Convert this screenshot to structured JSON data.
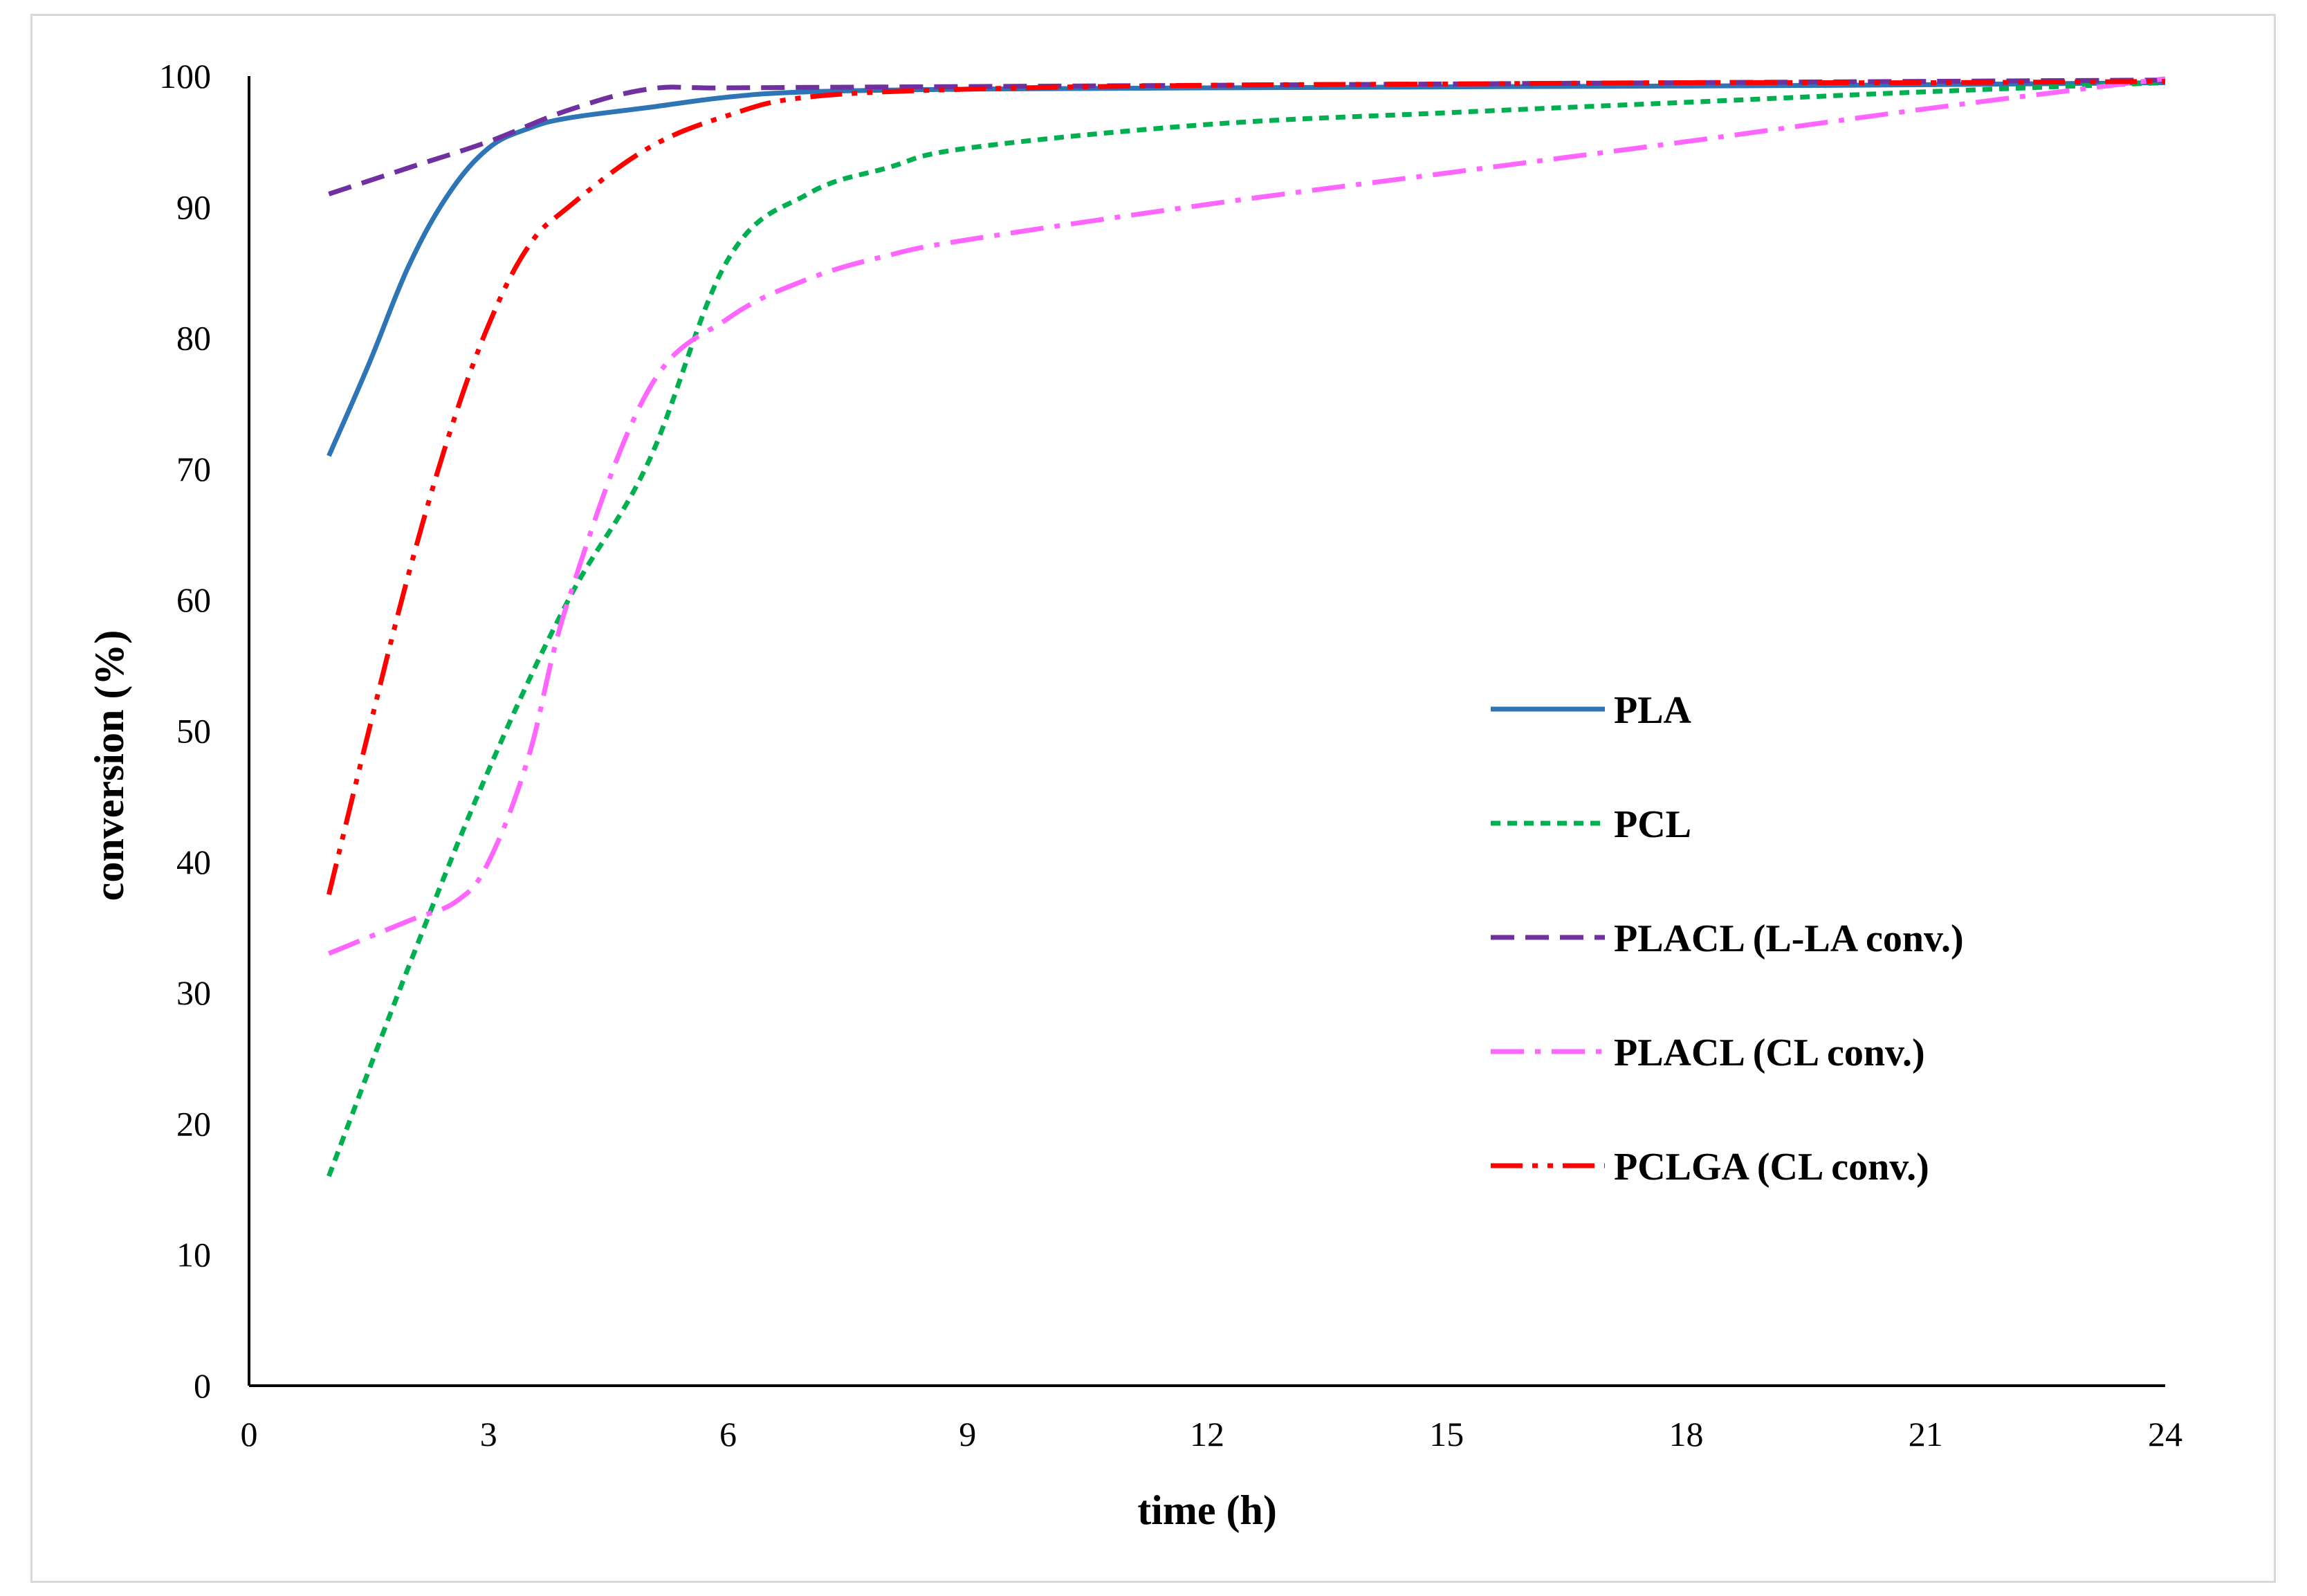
{
  "chart_data": {
    "type": "line",
    "title": "",
    "xlabel": "time (h)",
    "ylabel": "conversion (%)",
    "xlim": [
      0,
      24
    ],
    "ylim": [
      0,
      100
    ],
    "xticks": [
      0,
      3,
      6,
      9,
      12,
      15,
      18,
      21,
      24
    ],
    "yticks": [
      0,
      10,
      20,
      30,
      40,
      50,
      60,
      70,
      80,
      90,
      100
    ],
    "grid": false,
    "legend_position": "right-center",
    "series": [
      {
        "name": "PLA",
        "color": "#2E75B6",
        "dash": "solid",
        "points": [
          [
            1,
            71
          ],
          [
            1.5,
            78
          ],
          [
            2,
            85.5
          ],
          [
            2.5,
            91
          ],
          [
            3,
            94.5
          ],
          [
            3.5,
            96
          ],
          [
            4,
            96.8
          ],
          [
            5,
            97.6
          ],
          [
            6,
            98.4
          ],
          [
            7,
            98.8
          ],
          [
            9,
            99
          ],
          [
            12,
            99.1
          ],
          [
            16,
            99.2
          ],
          [
            20,
            99.3
          ],
          [
            24,
            99.5
          ]
        ]
      },
      {
        "name": "PCL",
        "color": "#00B050",
        "dash": "short-dash",
        "points": [
          [
            1,
            16
          ],
          [
            2,
            32
          ],
          [
            3,
            47
          ],
          [
            4,
            60
          ],
          [
            5,
            70.5
          ],
          [
            6,
            86
          ],
          [
            7,
            91
          ],
          [
            8,
            93
          ],
          [
            9,
            94.5
          ],
          [
            12,
            96.3
          ],
          [
            15,
            97.2
          ],
          [
            18,
            98
          ],
          [
            21,
            98.8
          ],
          [
            24,
            99.5
          ]
        ]
      },
      {
        "name": "PLACL (L-LA conv.)",
        "color": "#7030A0",
        "dash": "long-dash",
        "points": [
          [
            1,
            91
          ],
          [
            2,
            93
          ],
          [
            3,
            95
          ],
          [
            4,
            97.4
          ],
          [
            5,
            99
          ],
          [
            6,
            99.1
          ],
          [
            9,
            99.2
          ],
          [
            12,
            99.3
          ],
          [
            15,
            99.4
          ],
          [
            18,
            99.5
          ],
          [
            21,
            99.6
          ],
          [
            24,
            99.7
          ]
        ]
      },
      {
        "name": "PLACL (CL conv.)",
        "color": "#FF66FF",
        "dash": "long-dash-dot",
        "points": [
          [
            1,
            33
          ],
          [
            2,
            35.5
          ],
          [
            2.6,
            37
          ],
          [
            3,
            40
          ],
          [
            3.5,
            48
          ],
          [
            4,
            60
          ],
          [
            5,
            76
          ],
          [
            6,
            81.5
          ],
          [
            7,
            84.5
          ],
          [
            8,
            86.3
          ],
          [
            9,
            87.5
          ],
          [
            12,
            90.2
          ],
          [
            15,
            92.6
          ],
          [
            18,
            95
          ],
          [
            21,
            97.5
          ],
          [
            24,
            99.8
          ]
        ]
      },
      {
        "name": "PCLGA (CL conv.)",
        "color": "#FF0000",
        "dash": "dash-dot-dot",
        "points": [
          [
            1,
            37.5
          ],
          [
            1.5,
            50
          ],
          [
            2,
            62
          ],
          [
            2.5,
            72.5
          ],
          [
            3,
            81
          ],
          [
            3.5,
            87
          ],
          [
            4,
            90
          ],
          [
            5,
            94.5
          ],
          [
            6,
            97
          ],
          [
            7,
            98.4
          ],
          [
            9,
            99
          ],
          [
            12,
            99.3
          ],
          [
            15,
            99.4
          ],
          [
            18,
            99.5
          ],
          [
            21,
            99.5
          ],
          [
            24,
            99.6
          ]
        ]
      }
    ]
  }
}
